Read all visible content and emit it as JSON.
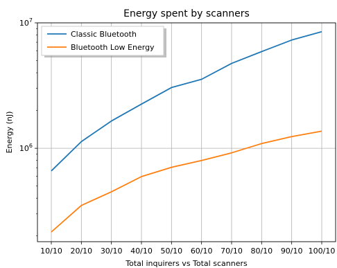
{
  "chart_data": {
    "type": "line",
    "title": "Energy spent by scanners",
    "xlabel": "Total inquirers vs Total scanners",
    "ylabel": "Energy (nJ)",
    "yscale": "log",
    "ylim": [
      180000,
      10000000
    ],
    "categories": [
      "10/10",
      "20/10",
      "30/10",
      "40/10",
      "50/10",
      "60/10",
      "70/10",
      "80/10",
      "90/10",
      "100/10"
    ],
    "y_ticks": [
      {
        "value": 1000000,
        "base": "10",
        "exp": "6"
      },
      {
        "value": 10000000,
        "base": "10",
        "exp": "7"
      }
    ],
    "grid": true,
    "legend_position": "top-left",
    "series": [
      {
        "name": "Classic Bluetooth",
        "color": "#1f77b4",
        "values": [
          660000,
          1130000,
          1650000,
          2250000,
          3050000,
          3550000,
          4750000,
          5900000,
          7300000,
          8500000
        ]
      },
      {
        "name": "Bluetooth Low Energy",
        "color": "#ff7f0e",
        "values": [
          215000,
          350000,
          450000,
          595000,
          705000,
          800000,
          920000,
          1090000,
          1240000,
          1370000
        ]
      }
    ]
  }
}
